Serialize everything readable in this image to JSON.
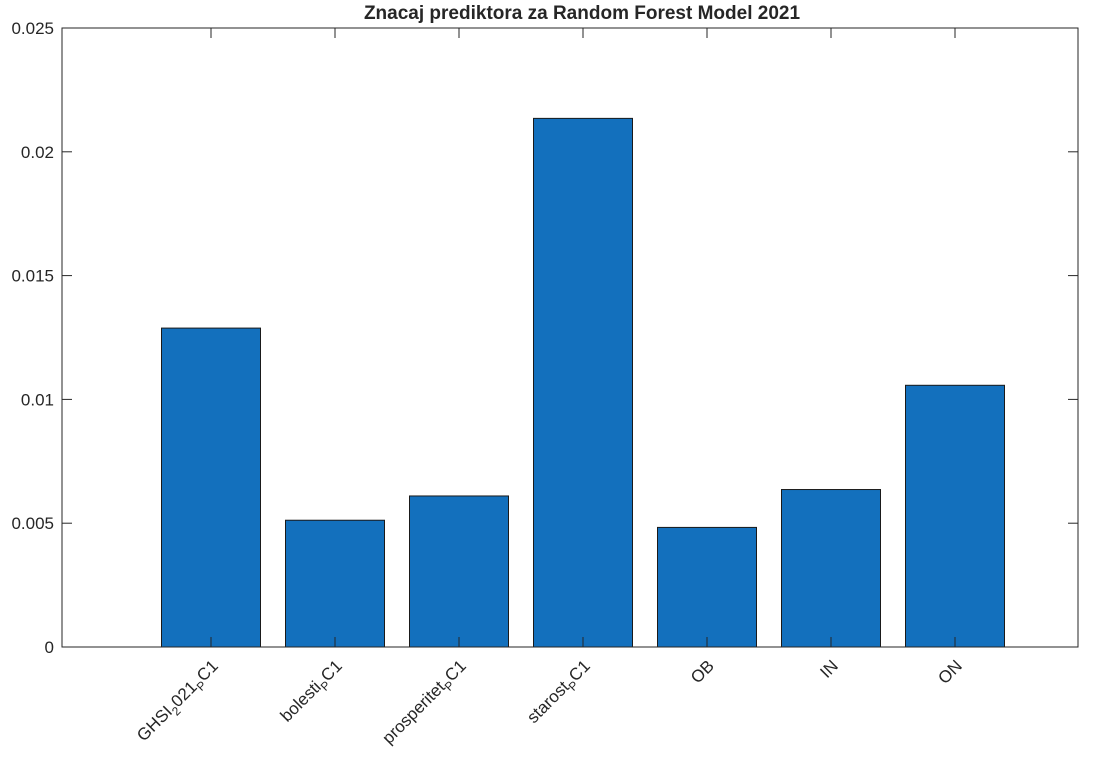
{
  "chart_data": {
    "type": "bar",
    "title": "Znacaj prediktora za Random Forest Model 2021",
    "xlabel": "",
    "ylabel": "",
    "categories": [
      {
        "base": "GHSI",
        "sub": "2",
        "mid": "021",
        "sub2": "P",
        "tail": "C1"
      },
      {
        "base": "bolesti",
        "sub": "P",
        "mid": "",
        "sub2": "",
        "tail": "C1"
      },
      {
        "base": "prosperitet",
        "sub": "P",
        "mid": "",
        "sub2": "",
        "tail": "C1"
      },
      {
        "base": "starost",
        "sub": "P",
        "mid": "",
        "sub2": "",
        "tail": "C1"
      },
      {
        "base": "OB",
        "sub": "",
        "mid": "",
        "sub2": "",
        "tail": ""
      },
      {
        "base": "IN",
        "sub": "",
        "mid": "",
        "sub2": "",
        "tail": ""
      },
      {
        "base": "ON",
        "sub": "",
        "mid": "",
        "sub2": "",
        "tail": ""
      }
    ],
    "values": [
      0.01288,
      0.00512,
      0.0061,
      0.02135,
      0.00483,
      0.00636,
      0.01057
    ],
    "ylim": [
      0,
      0.025
    ],
    "yticks": [
      "0",
      "0.005",
      "0.01",
      "0.015",
      "0.02",
      "0.025"
    ],
    "grid": false,
    "bar_color": "#1370bd",
    "bar_edge_color": "#1a1a1a",
    "axis_color": "#262626"
  }
}
